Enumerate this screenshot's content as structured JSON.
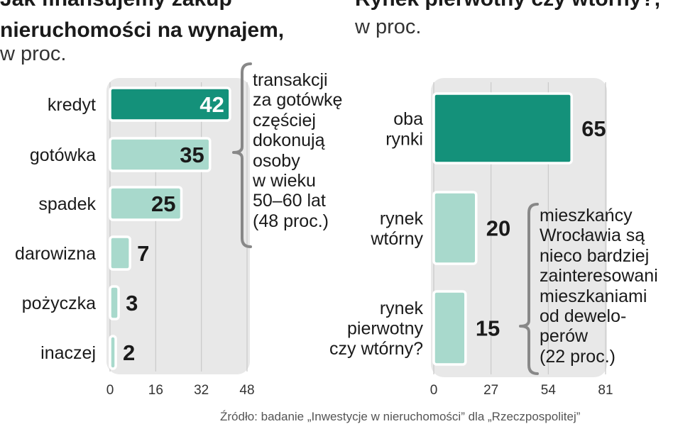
{
  "colors": {
    "highlight_bar": "#14917a",
    "regular_bar": "#a8d9cc",
    "panel_bg": "#e8e8e8",
    "bracket": "#888888",
    "text": "#1a1a1a"
  },
  "chart_data": [
    {
      "type": "bar",
      "orientation": "horizontal",
      "title_lines": [
        "Jak finansujemy zakup",
        "nieruchomości na wynajem,"
      ],
      "unit": "w proc.",
      "categories": [
        "kredyt",
        "gotówka",
        "spadek",
        "darowizna",
        "pożyczka",
        "inaczej"
      ],
      "values": [
        42,
        35,
        25,
        7,
        3,
        2
      ],
      "highlight": [
        true,
        false,
        false,
        false,
        false,
        false
      ],
      "xlim": [
        0,
        48
      ],
      "xticks": [
        "0",
        "16",
        "32",
        "48"
      ],
      "grid": true,
      "annotation": "transakcji za gotówkę częściej dokonują osoby w wieku 50–60 lat (48 proc.)"
    },
    {
      "type": "bar",
      "orientation": "horizontal",
      "title_lines": [
        "Rynek pierwotny czy wtórny?,"
      ],
      "unit": "w proc.",
      "categories": [
        "oba rynki",
        "rynek wtórny",
        "rynek pierwotny czy wtórny?"
      ],
      "values": [
        65,
        20,
        15
      ],
      "highlight": [
        true,
        false,
        false
      ],
      "xlim": [
        0,
        81
      ],
      "xticks": [
        "0",
        "27",
        "54",
        "81"
      ],
      "grid": true,
      "annotation": "mieszkańcy Wrocławia są nieco bardziej zainteresowani mieszkaniami od dewelo- perów (22 proc.)"
    }
  ],
  "annotations": {
    "left_lines": [
      "transakcji",
      "za gotówkę",
      "częściej",
      "dokonują",
      "osoby",
      "w wieku",
      "50–60 lat",
      "(48 proc.)"
    ],
    "right_lines": [
      "mieszkańcy",
      "Wrocławia są",
      "nieco bardziej",
      "zainteresowani",
      "mieszkaniami",
      "od dewelo-",
      "perów",
      "(22 proc.)"
    ]
  },
  "source": "Źródło: badanie „Inwestycje w nieruchomości” dla „Rzeczpospolitej”"
}
